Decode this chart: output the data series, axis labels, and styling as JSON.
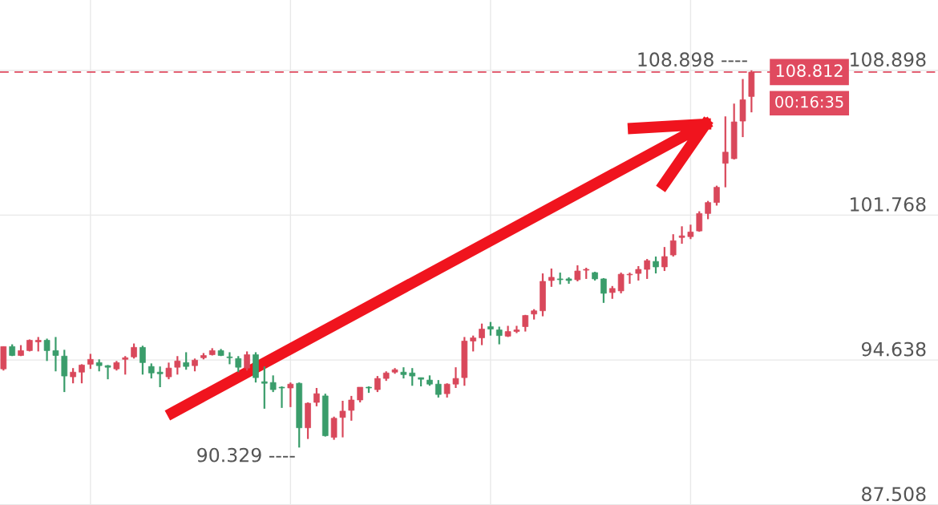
{
  "chart_data": {
    "type": "candlestick",
    "categories": [
      null,
      null,
      null,
      null,
      null,
      null,
      null,
      null,
      null,
      null,
      null,
      null,
      null,
      null,
      null,
      null,
      null,
      null,
      null,
      null,
      null,
      null,
      null,
      null,
      null,
      null,
      null,
      null,
      null,
      null,
      null,
      null,
      null,
      null,
      null,
      null,
      null,
      null,
      null,
      null,
      null,
      null,
      null,
      null,
      null,
      null,
      null,
      null,
      null,
      null,
      null,
      null,
      null,
      null,
      null,
      null,
      null,
      null,
      null,
      null,
      null,
      null,
      null,
      null,
      null,
      null,
      null,
      null,
      null,
      null,
      null,
      null,
      null,
      null,
      null,
      null,
      null,
      null,
      null,
      null,
      null,
      null,
      null,
      null,
      null,
      null,
      null
    ],
    "ohlc": [
      [
        94.2,
        95.3,
        94.12,
        95.3
      ],
      [
        95.3,
        95.41,
        94.83,
        94.86
      ],
      [
        94.86,
        95.37,
        94.83,
        95.1
      ],
      [
        95.1,
        95.65,
        95.06,
        95.61
      ],
      [
        95.53,
        95.77,
        95.06,
        95.61
      ],
      [
        95.61,
        95.69,
        94.59,
        95.1
      ],
      [
        95.1,
        95.77,
        94.08,
        94.86
      ],
      [
        94.83,
        95.14,
        93.06,
        93.85
      ],
      [
        93.81,
        94.24,
        93.49,
        94.04
      ],
      [
        94.04,
        94.43,
        93.49,
        94.39
      ],
      [
        94.43,
        94.94,
        94.2,
        94.67
      ],
      [
        94.51,
        94.67,
        94.08,
        94.36
      ],
      [
        94.36,
        94.39,
        93.69,
        94.28
      ],
      [
        94.2,
        94.59,
        94.12,
        94.51
      ],
      [
        94.67,
        94.83,
        93.92,
        94.75
      ],
      [
        94.79,
        95.45,
        94.71,
        95.26
      ],
      [
        95.26,
        95.34,
        93.92,
        94.51
      ],
      [
        94.32,
        94.47,
        93.73,
        94.0
      ],
      [
        94.04,
        94.32,
        93.3,
        93.96
      ],
      [
        93.81,
        94.51,
        93.69,
        94.24
      ],
      [
        94.28,
        94.83,
        93.92,
        94.59
      ],
      [
        94.51,
        95.02,
        94.16,
        94.32
      ],
      [
        94.36,
        94.71,
        94.08,
        94.63
      ],
      [
        94.75,
        94.98,
        94.67,
        94.86
      ],
      [
        94.9,
        95.22,
        94.86,
        95.1
      ],
      [
        95.1,
        95.18,
        94.83,
        94.86
      ],
      [
        94.79,
        95.02,
        94.43,
        94.75
      ],
      [
        94.71,
        94.83,
        94.04,
        94.28
      ],
      [
        94.24,
        95.06,
        94.12,
        94.9
      ],
      [
        94.9,
        95.02,
        93.53,
        93.77
      ],
      [
        93.57,
        94.32,
        92.24,
        93.49
      ],
      [
        93.53,
        93.88,
        93.06,
        93.18
      ],
      [
        93.3,
        93.34,
        92.28,
        93.26
      ],
      [
        93.26,
        93.53,
        92.32,
        93.45
      ],
      [
        93.49,
        93.53,
        90.329,
        91.3
      ],
      [
        91.3,
        92.55,
        90.75,
        92.51
      ],
      [
        92.55,
        93.26,
        92.36,
        92.98
      ],
      [
        92.87,
        92.98,
        90.87,
        90.91
      ],
      [
        90.83,
        91.85,
        90.71,
        91.77
      ],
      [
        91.81,
        92.63,
        90.83,
        92.12
      ],
      [
        92.16,
        92.87,
        91.65,
        92.67
      ],
      [
        92.67,
        93.3,
        92.55,
        93.3
      ],
      [
        93.3,
        93.34,
        93.02,
        93.26
      ],
      [
        93.18,
        93.85,
        93.06,
        93.73
      ],
      [
        93.73,
        94.08,
        93.61,
        94.0
      ],
      [
        94.04,
        94.24,
        93.96,
        94.16
      ],
      [
        94.04,
        94.28,
        93.73,
        93.92
      ],
      [
        94.0,
        94.24,
        93.37,
        93.85
      ],
      [
        93.77,
        93.77,
        93.34,
        93.69
      ],
      [
        93.65,
        93.88,
        93.37,
        93.45
      ],
      [
        93.45,
        93.65,
        92.79,
        92.94
      ],
      [
        92.98,
        93.49,
        92.79,
        93.45
      ],
      [
        93.45,
        94.28,
        93.26,
        93.73
      ],
      [
        93.77,
        95.77,
        93.37,
        95.57
      ],
      [
        95.57,
        95.84,
        95.06,
        95.73
      ],
      [
        95.73,
        96.43,
        95.37,
        96.16
      ],
      [
        96.28,
        96.51,
        95.84,
        96.16
      ],
      [
        96.12,
        96.28,
        95.41,
        95.84
      ],
      [
        95.81,
        96.32,
        95.77,
        96.04
      ],
      [
        96.04,
        96.32,
        95.96,
        96.12
      ],
      [
        96.28,
        96.86,
        96.04,
        96.83
      ],
      [
        96.9,
        97.14,
        96.63,
        97.06
      ],
      [
        97.06,
        98.9,
        96.79,
        98.51
      ],
      [
        98.55,
        99.14,
        98.24,
        98.71
      ],
      [
        98.63,
        98.94,
        98.36,
        98.59
      ],
      [
        98.63,
        98.71,
        98.39,
        98.55
      ],
      [
        98.59,
        99.3,
        98.51,
        99.02
      ],
      [
        99.06,
        99.18,
        98.63,
        99.1
      ],
      [
        98.94,
        98.98,
        98.55,
        98.63
      ],
      [
        98.63,
        98.67,
        97.45,
        97.92
      ],
      [
        97.96,
        98.28,
        97.65,
        98.16
      ],
      [
        98.04,
        98.94,
        97.92,
        98.86
      ],
      [
        98.83,
        98.94,
        98.39,
        98.86
      ],
      [
        98.9,
        99.26,
        98.55,
        99.1
      ],
      [
        99.1,
        99.61,
        98.63,
        99.53
      ],
      [
        99.49,
        99.73,
        98.9,
        99.22
      ],
      [
        99.22,
        100.2,
        99.02,
        99.73
      ],
      [
        99.81,
        100.83,
        99.73,
        100.51
      ],
      [
        100.67,
        101.22,
        100.36,
        100.75
      ],
      [
        100.71,
        101.3,
        100.59,
        100.94
      ],
      [
        100.99,
        101.96,
        100.95,
        101.85
      ],
      [
        101.85,
        102.47,
        101.57,
        102.39
      ],
      [
        102.39,
        103.22,
        102.24,
        103.14
      ],
      [
        104.32,
        106.63,
        103.14,
        104.87
      ],
      [
        104.55,
        107.26,
        104.51,
        106.36
      ],
      [
        106.4,
        108.47,
        105.61,
        107.45
      ],
      [
        107.61,
        108.898,
        106.83,
        108.812
      ]
    ],
    "colors": [
      "#d9485b",
      "#3a9d6b",
      "#d9485b",
      "#d9485b",
      "#d9485b",
      "#3a9d6b",
      "#3a9d6b",
      "#3a9d6b",
      "#d9485b",
      "#d9485b",
      "#d9485b",
      "#3a9d6b",
      "#3a9d6b",
      "#d9485b",
      "#d9485b",
      "#d9485b",
      "#3a9d6b",
      "#3a9d6b",
      "#3a9d6b",
      "#d9485b",
      "#d9485b",
      "#3a9d6b",
      "#d9485b",
      "#d9485b",
      "#d9485b",
      "#3a9d6b",
      "#3a9d6b",
      "#3a9d6b",
      "#d9485b",
      "#3a9d6b",
      "#3a9d6b",
      "#3a9d6b",
      "#3a9d6b",
      "#d9485b",
      "#3a9d6b",
      "#d9485b",
      "#d9485b",
      "#3a9d6b",
      "#d9485b",
      "#d9485b",
      "#d9485b",
      "#d9485b",
      "#3a9d6b",
      "#d9485b",
      "#d9485b",
      "#d9485b",
      "#3a9d6b",
      "#3a9d6b",
      "#3a9d6b",
      "#3a9d6b",
      "#3a9d6b",
      "#d9485b",
      "#d9485b",
      "#d9485b",
      "#d9485b",
      "#d9485b",
      "#3a9d6b",
      "#3a9d6b",
      "#d9485b",
      "#d9485b",
      "#d9485b",
      "#d9485b",
      "#d9485b",
      "#d9485b",
      "#3a9d6b",
      "#3a9d6b",
      "#d9485b",
      "#d9485b",
      "#3a9d6b",
      "#3a9d6b",
      "#d9485b",
      "#d9485b",
      "#d9485b",
      "#d9485b",
      "#d9485b",
      "#3a9d6b",
      "#d9485b",
      "#d9485b",
      "#d9485b",
      "#d9485b",
      "#d9485b",
      "#d9485b",
      "#d9485b",
      "#d9485b",
      "#d9485b",
      "#d9485b",
      "#d9485b"
    ],
    "ylim": [
      87.5,
      112.36
    ],
    "yticks": [
      87.508,
      94.638,
      101.768,
      108.898
    ],
    "grid": true,
    "ref_lines": [
      {
        "axis": "y",
        "value": 108.812,
        "label": "108.812",
        "color": "#e04a5f",
        "line_style": "dashed"
      }
    ],
    "annotations": [
      "108.898 ----",
      "90.329 ----",
      "00:16:35"
    ]
  }
}
